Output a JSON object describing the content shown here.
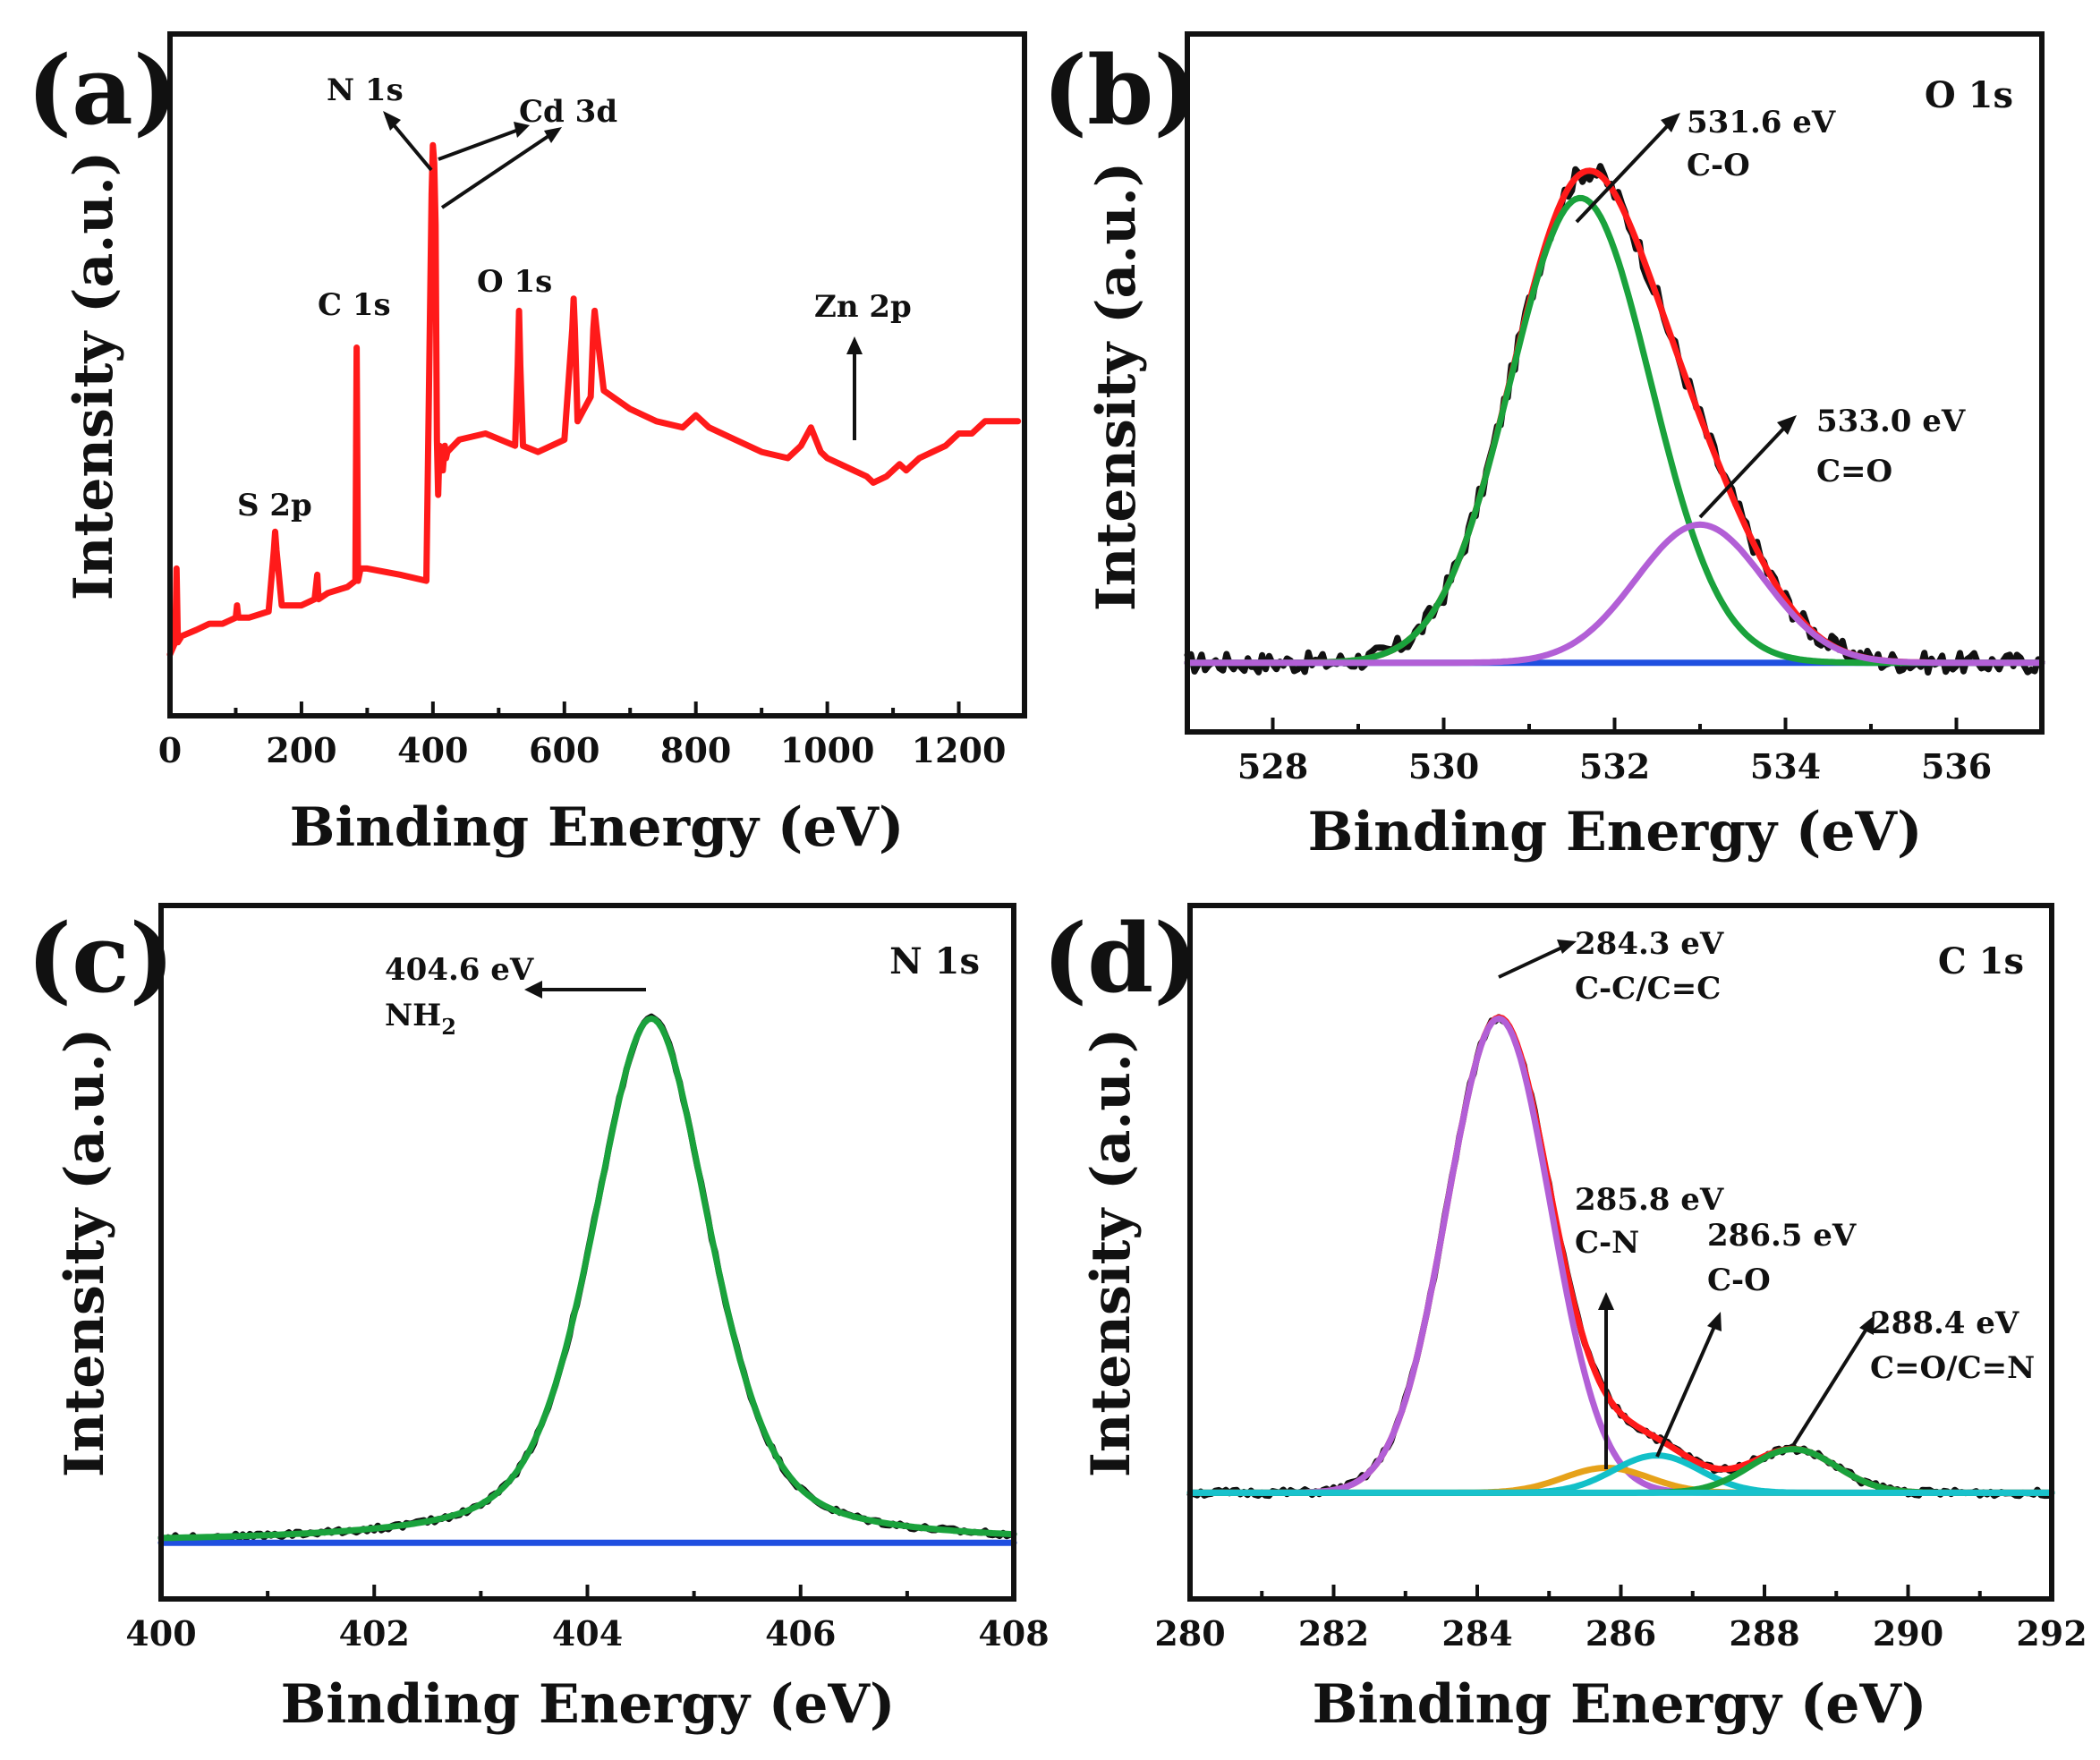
{
  "colors": {
    "survey": "#ff1a1a",
    "raw": "#111111",
    "envelope": "#ff1a1a",
    "green": "#1aa23c",
    "purple": "#b25fd6",
    "background": "#1f4fe0",
    "orange": "#e6a21a",
    "teal": "#12c0c8",
    "cyan": "#19c2cc"
  },
  "chart_data": [
    {
      "id": "a",
      "type": "line",
      "panel_label": "(a)",
      "xlabel": "Binding Energy (eV)",
      "ylabel": "Intensity (a.u.)",
      "xlim": [
        0,
        1300
      ],
      "ylim": [
        0,
        100
      ],
      "xticks": [
        0,
        200,
        400,
        600,
        800,
        1000,
        1200
      ],
      "xtick_labels": [
        "0",
        "200",
        "400",
        "600",
        "800",
        "1000",
        "1200"
      ],
      "series": [
        {
          "name": "survey",
          "color_key": "survey",
          "x": [
            0,
            8,
            10,
            12,
            18,
            40,
            60,
            80,
            100,
            102,
            104,
            120,
            150,
            158,
            160,
            162,
            170,
            200,
            220,
            224,
            226,
            240,
            270,
            282,
            284,
            286,
            290,
            300,
            350,
            390,
            398,
            400,
            402,
            404,
            406,
            408,
            410,
            415,
            418,
            420,
            422,
            440,
            480,
            525,
            529,
            531,
            533,
            537,
            560,
            600,
            612,
            614,
            616,
            620,
            630,
            640,
            644,
            646,
            650,
            660,
            700,
            740,
            780,
            800,
            820,
            860,
            900,
            940,
            960,
            975,
            990,
            1000,
            1020,
            1040,
            1060,
            1070,
            1090,
            1110,
            1120,
            1140,
            1160,
            1180,
            1200,
            1220,
            1240,
            1260,
            1290
          ],
          "y": [
            10,
            12,
            24,
            12,
            13,
            14,
            15,
            15,
            16,
            18,
            16,
            16,
            17,
            27,
            30,
            27,
            18,
            18,
            19,
            23,
            19,
            20,
            21,
            22,
            60,
            22,
            24,
            24,
            23,
            22,
            85,
            93,
            90,
            80,
            45,
            36,
            44,
            40,
            44,
            42,
            43,
            45,
            46,
            44,
            57,
            66,
            57,
            44,
            43,
            45,
            63,
            68,
            63,
            48,
            50,
            52,
            63,
            66,
            62,
            53,
            50,
            48,
            47,
            49,
            47,
            45,
            43,
            42,
            44,
            47,
            43,
            42,
            41,
            40,
            39,
            38,
            39,
            41,
            40,
            42,
            43,
            44,
            46,
            46,
            48,
            48,
            48
          ]
        }
      ],
      "annotations": [
        {
          "text": "N 1s"
        },
        {
          "text": "Cd 3d"
        },
        {
          "text": "C 1s"
        },
        {
          "text": "O 1s"
        },
        {
          "text": "S 2p"
        },
        {
          "text": "Zn 2p"
        }
      ]
    },
    {
      "id": "b",
      "type": "line",
      "panel_label": "(b)",
      "corner_label": "O 1s",
      "xlabel": "Binding Energy (eV)",
      "ylabel": "Intensity (a.u.)",
      "xlim": [
        527,
        537
      ],
      "ylim": [
        0,
        100
      ],
      "xticks": [
        528,
        530,
        532,
        534,
        536
      ],
      "xtick_labels": [
        "528",
        "530",
        "532",
        "534",
        "536"
      ],
      "baseline": 11,
      "components": [
        {
          "name": "raw",
          "color_key": "raw",
          "kind": "sum",
          "jitter": 1.6
        },
        {
          "name": "envelope",
          "color_key": "envelope",
          "kind": "sum"
        },
        {
          "name": "background",
          "color_key": "background",
          "kind": "flat"
        },
        {
          "name": "C-O",
          "color_key": "green",
          "center": 531.6,
          "height": 74,
          "sigma": 0.82
        },
        {
          "name": "C=O",
          "color_key": "purple",
          "center": 533.0,
          "height": 22,
          "sigma": 0.75
        }
      ],
      "annotations": [
        {
          "line1": "531.6 eV",
          "line2": "C-O"
        },
        {
          "line1": "533.0 eV",
          "line2": "C=O"
        }
      ]
    },
    {
      "id": "c",
      "type": "line",
      "panel_label": "(c)",
      "corner_label": "N 1s",
      "xlabel": "Binding Energy (eV)",
      "ylabel": "Intensity (a.u.)",
      "xlim": [
        400,
        408
      ],
      "ylim": [
        0,
        100
      ],
      "xticks": [
        400,
        402,
        404,
        406,
        408
      ],
      "xtick_labels": [
        "400",
        "402",
        "404",
        "406",
        "408"
      ],
      "baseline": 9,
      "components": [
        {
          "name": "raw",
          "color_key": "raw",
          "kind": "sum",
          "jitter": 0.4
        },
        {
          "name": "background",
          "color_key": "background",
          "kind": "flat"
        },
        {
          "name": "NH2",
          "color_key": "green",
          "center": 404.6,
          "height": 84,
          "sigma": 0.55,
          "shape": "voigt"
        }
      ],
      "annotations": [
        {
          "line1": "404.6 eV",
          "line2": "NH",
          "sub": "2"
        }
      ]
    },
    {
      "id": "d",
      "type": "line",
      "panel_label": "(d)",
      "corner_label": "C 1s",
      "xlabel": "Binding Energy (eV)",
      "ylabel": "Intensity (a.u.)",
      "xlim": [
        280,
        292
      ],
      "ylim": [
        0,
        100
      ],
      "xticks": [
        280,
        282,
        284,
        286,
        288,
        290,
        292
      ],
      "xtick_labels": [
        "280",
        "282",
        "284",
        "286",
        "288",
        "290",
        "292"
      ],
      "baseline": 17,
      "components": [
        {
          "name": "raw",
          "color_key": "raw",
          "kind": "sum",
          "jitter": 0.5
        },
        {
          "name": "envelope",
          "color_key": "envelope",
          "kind": "sum"
        },
        {
          "name": "C-C/C=C",
          "color_key": "purple",
          "center": 284.3,
          "height": 76,
          "sigma": 0.72
        },
        {
          "name": "C-N",
          "color_key": "orange",
          "center": 285.8,
          "height": 4,
          "sigma": 0.6
        },
        {
          "name": "C-O",
          "color_key": "teal",
          "center": 286.5,
          "height": 6,
          "sigma": 0.6
        },
        {
          "name": "C=O/C=N",
          "color_key": "green",
          "center": 288.4,
          "height": 7,
          "sigma": 0.6
        },
        {
          "name": "background",
          "color_key": "cyan",
          "kind": "flat"
        }
      ],
      "annotations": [
        {
          "line1": "284.3 eV",
          "line2": "C-C/C=C"
        },
        {
          "line1": "285.8 eV",
          "line2": "C-N"
        },
        {
          "line1": "286.5 eV",
          "line2": "C-O"
        },
        {
          "line1": "288.4 eV",
          "line2": "C=O/C=N"
        }
      ]
    }
  ]
}
